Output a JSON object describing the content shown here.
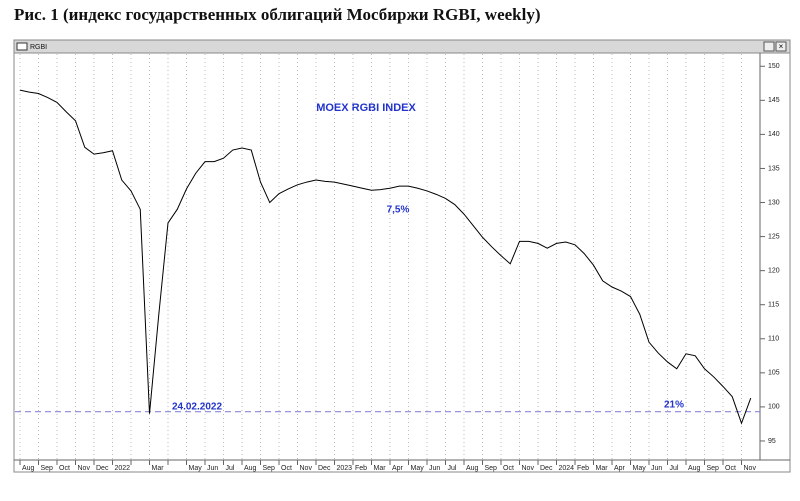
{
  "heading": "Рис. 1 (индекс государственных облигаций Мосбиржи RGBI, weekly)",
  "window_title": "RGBI",
  "chart_data": {
    "type": "line",
    "title": "MOEX RGBI INDEX",
    "categories": [
      "Aug",
      null,
      "Sep",
      null,
      "Oct",
      null,
      "Nov",
      null,
      "Dec",
      null,
      "2022",
      null,
      null,
      null,
      "Mar",
      null,
      null,
      null,
      "May",
      null,
      "Jun",
      null,
      "Jul",
      null,
      "Aug",
      null,
      "Sep",
      null,
      "Oct",
      null,
      "Nov",
      null,
      "Dec",
      null,
      "2023",
      null,
      "Feb",
      null,
      "Mar",
      null,
      "Apr",
      null,
      "May",
      null,
      "Jun",
      null,
      "Jul",
      null,
      "Aug",
      null,
      "Sep",
      null,
      "Oct",
      null,
      "Nov",
      null,
      "Dec",
      null,
      "2024",
      null,
      "Feb",
      null,
      "Mar",
      null,
      "Apr",
      null,
      "May",
      null,
      "Jun",
      null,
      "Jul",
      null,
      "Aug",
      null,
      "Sep",
      null,
      "Oct",
      null,
      "Nov",
      null
    ],
    "values": [
      146.5,
      146.2,
      146,
      145.4,
      144.7,
      143.3,
      142,
      138.1,
      137.1,
      137.3,
      137.6,
      133.3,
      131.7,
      129,
      99,
      113.5,
      127,
      129,
      132,
      134.3,
      136,
      136,
      136.5,
      137.7,
      138,
      137.7,
      133,
      130,
      131.3,
      132,
      132.6,
      133,
      133.3,
      133.1,
      133,
      132.7,
      132.4,
      132.1,
      131.8,
      131.9,
      132.1,
      132.4,
      132.4,
      132.1,
      131.7,
      131.2,
      130.6,
      129.7,
      128.3,
      126.6,
      124.9,
      123.5,
      122.2,
      121,
      124.3,
      124.3,
      124,
      123.3,
      124,
      124.2,
      123.8,
      122.5,
      120.8,
      118.5,
      117.6,
      117,
      116.2,
      113.6,
      109.5,
      107.9,
      106.6,
      105.6,
      107.8,
      107.5,
      105.6,
      104.4,
      103,
      101.5,
      97.6,
      101.3
    ],
    "color": "#000000",
    "ylim": [
      92.5,
      151.8
    ],
    "yticks": [
      95,
      100,
      105,
      110,
      115,
      120,
      125,
      130,
      135,
      140,
      145,
      150
    ],
    "grid": true,
    "reference_line": 99.3,
    "reference_color": "#8888dd",
    "annotations": [
      "7,5%",
      "24.02.2022",
      "21%"
    ]
  }
}
